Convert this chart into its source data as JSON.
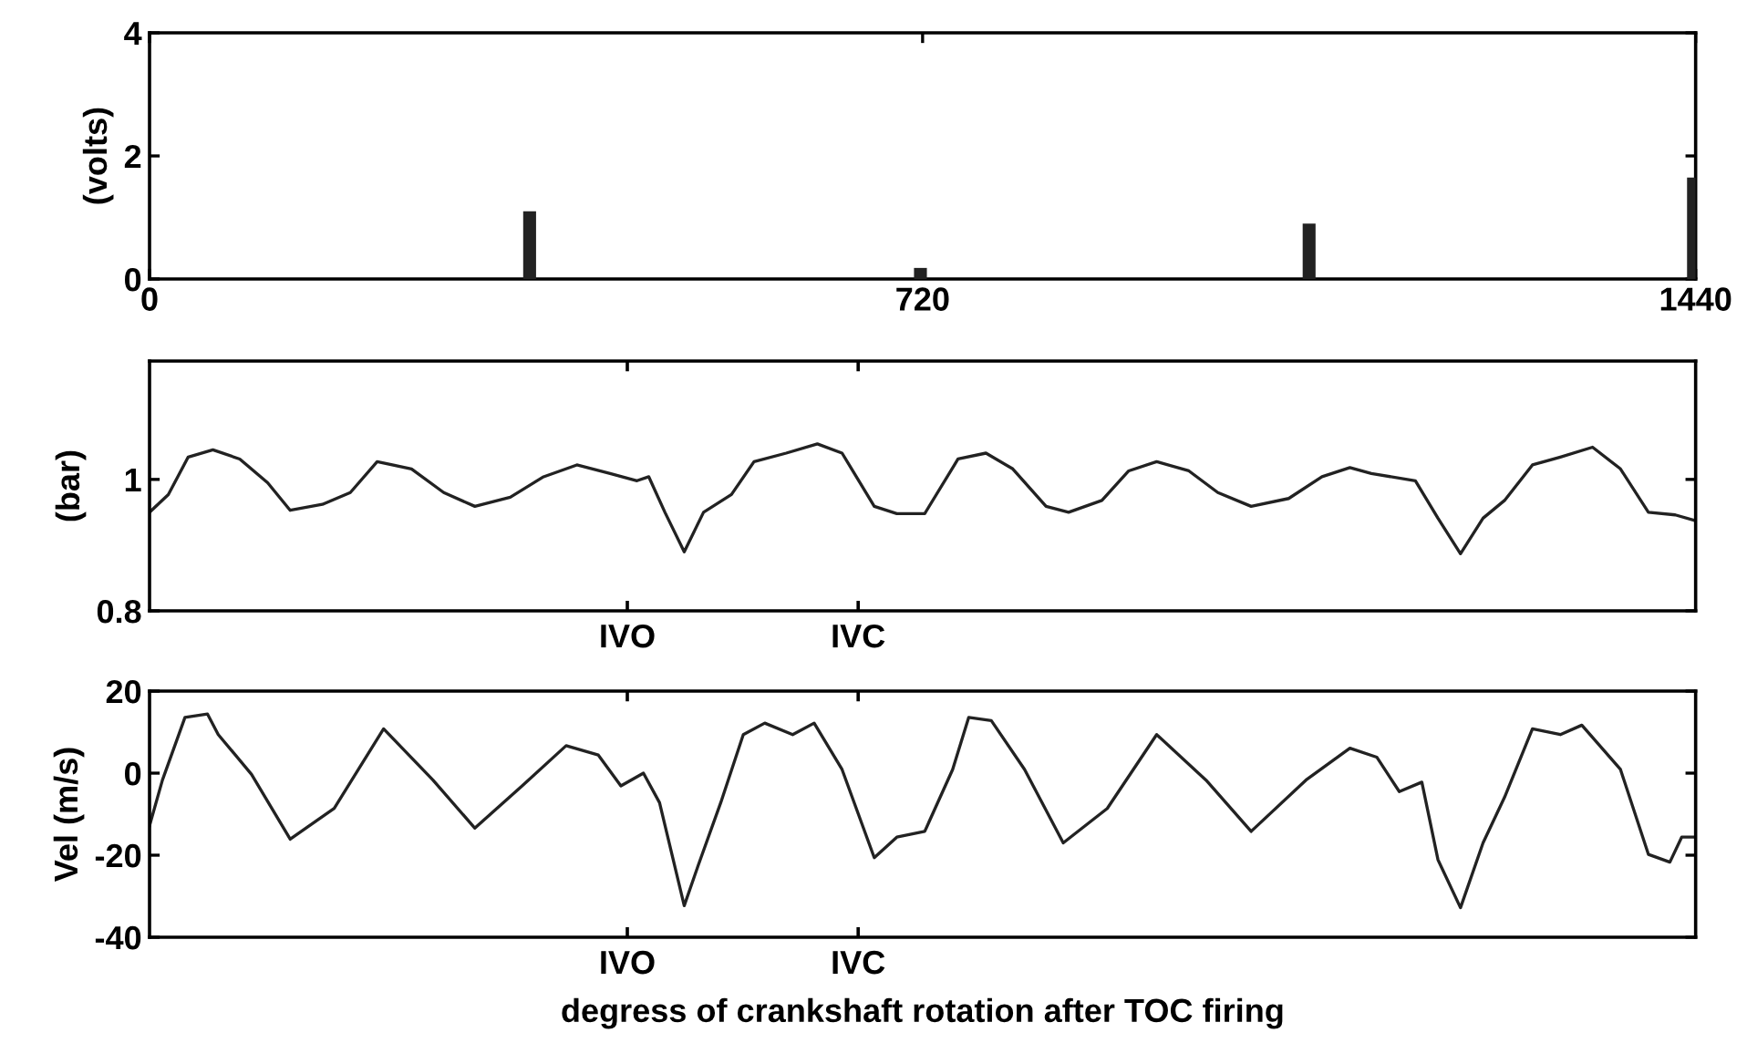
{
  "chart_data": [
    {
      "type": "bar",
      "ylabel": "(volts)",
      "x": [
        354,
        718,
        1080,
        1438
      ],
      "values": [
        1.1,
        0.18,
        0.9,
        1.65
      ],
      "color": "#222222",
      "xlim": [
        0,
        1440
      ],
      "ylim": [
        0,
        4
      ],
      "xticks": [
        0,
        720,
        1440
      ],
      "yticks": [
        0,
        2,
        4
      ],
      "grid": false,
      "legend": false
    },
    {
      "type": "line",
      "ylabel": "(bar)",
      "xlim": [
        0,
        1440
      ],
      "ylim": [
        0.8,
        1.18
      ],
      "tick_labels": "y",
      "ref_lines": [
        {
          "axis": "x",
          "value": 445,
          "label": "IVO"
        },
        {
          "axis": "x",
          "value": 660,
          "label": "IVC"
        }
      ],
      "yticks": [
        0.8,
        1
      ],
      "grid": false,
      "legend": false,
      "series": [
        {
          "color": "#222222",
          "x": [
            0,
            17.5,
            36,
            59,
            84,
            110,
            131,
            161,
            187,
            212,
            244,
            274,
            303,
            336,
            367,
            398,
            429,
            454,
            465,
            480,
            498,
            516,
            542,
            563,
            593,
            622,
            645,
            675,
            696,
            722,
            753,
            779,
            804,
            835,
            856,
            887,
            912,
            938,
            968,
            995,
            1026,
            1061,
            1092,
            1118,
            1138,
            1179,
            1200,
            1221,
            1242,
            1262,
            1288,
            1314,
            1344,
            1370,
            1396,
            1421,
            1440
          ],
          "values": [
            0.95,
            0.977,
            1.034,
            1.045,
            1.031,
            0.995,
            0.953,
            0.962,
            0.98,
            1.027,
            1.016,
            0.98,
            0.959,
            0.973,
            1.004,
            1.022,
            1.009,
            0.998,
            1.004,
            0.95,
            0.89,
            0.95,
            0.977,
            1.027,
            1.04,
            1.054,
            1.04,
            0.959,
            0.948,
            0.948,
            1.031,
            1.04,
            1.016,
            0.959,
            0.95,
            0.968,
            1.013,
            1.027,
            1.013,
            0.98,
            0.959,
            0.971,
            1.004,
            1.018,
            1.009,
            0.998,
            0.941,
            0.887,
            0.941,
            0.968,
            1.022,
            1.034,
            1.049,
            1.016,
            0.95,
            0.946,
            0.937
          ]
        }
      ]
    },
    {
      "type": "line",
      "ylabel": "Vel (m/s)",
      "xlabel": "degress of crankshaft rotation after TOC firing",
      "xlim": [
        0,
        1440
      ],
      "ylim": [
        -40,
        20
      ],
      "tick_labels": "y",
      "ref_lines": [
        {
          "axis": "x",
          "value": 445,
          "label": "IVO"
        },
        {
          "axis": "x",
          "value": 660,
          "label": "IVC"
        }
      ],
      "yticks": [
        -40,
        -20,
        0,
        20
      ],
      "grid": false,
      "legend": false,
      "series": [
        {
          "color": "#222222",
          "x": [
            0,
            12,
            33,
            54,
            64,
            95,
            131,
            172,
            218,
            264,
            303,
            347,
            388,
            418,
            439,
            460,
            475,
            498,
            511,
            532,
            553,
            573,
            599,
            619,
            645,
            675,
            696,
            722,
            748,
            763,
            784,
            815,
            851,
            892,
            938,
            984,
            1026,
            1077,
            1118,
            1143,
            1164,
            1185,
            1200,
            1221,
            1242,
            1262,
            1288,
            1314,
            1334,
            1370,
            1396,
            1416,
            1427,
            1440
          ],
          "values": [
            -12.8,
            -1.7,
            13.6,
            14.4,
            9.4,
            -0.3,
            -16.1,
            -8.6,
            10.8,
            -1.7,
            -13.4,
            -3.1,
            6.7,
            4.4,
            -3.1,
            0,
            -7.2,
            -32.3,
            -22.5,
            -7.2,
            9.4,
            12.2,
            9.4,
            12.2,
            0.9,
            -20.6,
            -15.6,
            -14.2,
            0.9,
            13.6,
            12.8,
            0.9,
            -17,
            -8.6,
            9.4,
            -1.7,
            -14.2,
            -1.7,
            6.1,
            3.9,
            -4.5,
            -2.2,
            -21.1,
            -32.8,
            -17,
            -5.9,
            10.8,
            9.4,
            11.7,
            0.9,
            -19.8,
            -21.7,
            -15.6,
            -15.6
          ]
        }
      ]
    }
  ]
}
